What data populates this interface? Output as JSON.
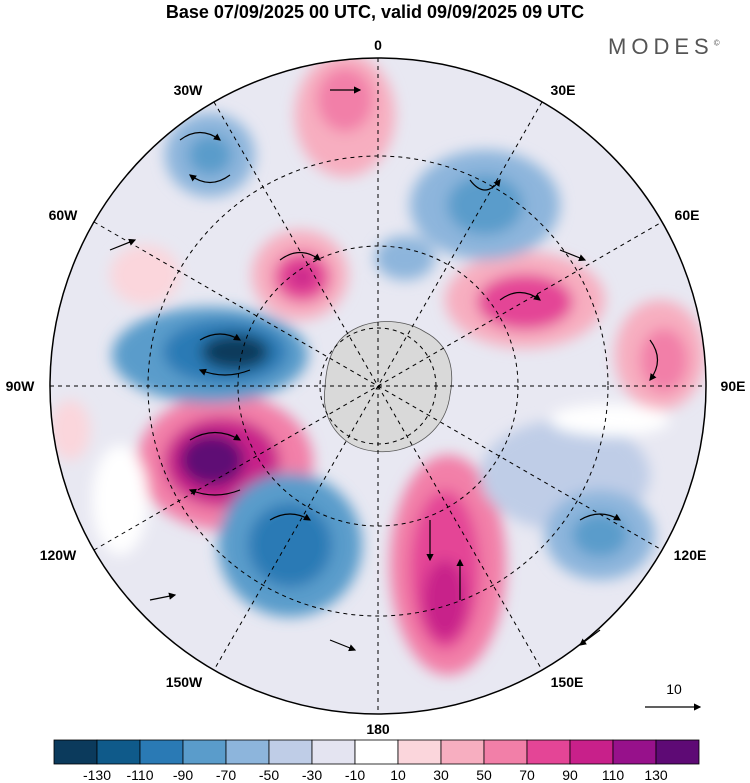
{
  "title": "Base 07/09/2025 00 UTC, valid 09/09/2025 09 UTC",
  "brand": "MODES",
  "brand_mark": "©",
  "longitude_labels": {
    "lon_0": "0",
    "lon_30e": "30E",
    "lon_60e": "60E",
    "lon_90e": "90E",
    "lon_120e": "120E",
    "lon_150e": "150E",
    "lon_180": "180",
    "lon_150w": "150W",
    "lon_120w": "120W",
    "lon_90w": "90W",
    "lon_60w": "60W",
    "lon_30w": "30W"
  },
  "reference_vector": {
    "label": "10"
  },
  "colorbar": {
    "colors": [
      "#0b3a5c",
      "#0f5a8a",
      "#2a7ab5",
      "#5a9ccb",
      "#8db5dc",
      "#bfcde7",
      "#e4e4f1",
      "#ffffff",
      "#fbd6dc",
      "#f7aec0",
      "#f27fa8",
      "#e44596",
      "#c8208a",
      "#97118b",
      "#5e0a75"
    ],
    "labels": [
      "-130",
      "-110",
      "-90",
      "-70",
      "-50",
      "-30",
      "-10",
      "10",
      "30",
      "50",
      "70",
      "90",
      "110",
      "130"
    ]
  },
  "colors": {
    "land_fill": "#d9d9d9",
    "vector": "#000000"
  }
}
